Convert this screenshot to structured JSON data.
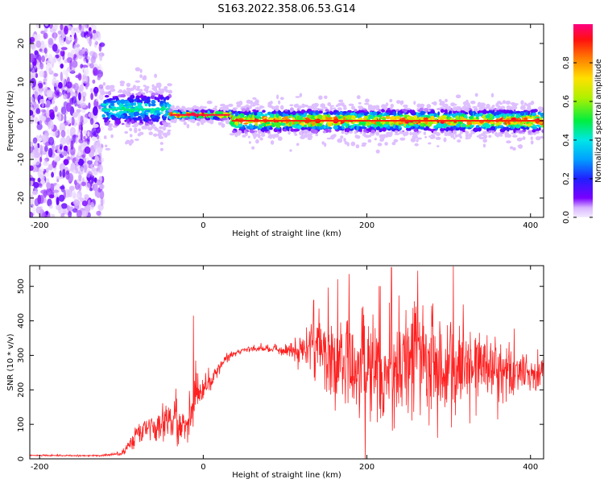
{
  "figure": {
    "title": "S163.2022.358.06.53.G14"
  },
  "chart_data": [
    {
      "type": "heatmap",
      "title": "S163.2022.358.06.53.G14",
      "xlabel": "Height of straight line (km)",
      "ylabel": "Frequency (Hz)",
      "xlim": [
        -212,
        416
      ],
      "ylim": [
        -25,
        25
      ],
      "xticks": [
        "-200",
        "0",
        "200",
        "400"
      ],
      "yticks": [
        "-20",
        "-10",
        "0",
        "10",
        "20"
      ],
      "colorbar": {
        "label": "Normalized spectral amplitude",
        "range": [
          0,
          1
        ],
        "ticks": [
          "0.0",
          "0.2",
          "0.4",
          "0.6",
          "0.8"
        ],
        "colors": [
          "#f4ecff",
          "#d8b4ff",
          "#7a00ff",
          "#2020ff",
          "#00a0ff",
          "#00e6e6",
          "#00ee40",
          "#b0f000",
          "#ffe000",
          "#ff8000",
          "#ff1010",
          "#ff0080"
        ]
      },
      "features": [
        {
          "x_range": [
            -212,
            -123
          ],
          "freq_range": [
            -25,
            25
          ],
          "amplitude": 0.15,
          "description_type": "scattered noise"
        },
        {
          "x_range": [
            -123,
            -40
          ],
          "center_freq": 3,
          "spread_hz": 8,
          "amplitude": 0.45
        },
        {
          "x_range": [
            -40,
            35
          ],
          "center_freq": 1.5,
          "spread_hz": 2,
          "amplitude": 0.95
        },
        {
          "x_range": [
            35,
            416
          ],
          "center_freq": 0,
          "spread_hz": 5,
          "amplitude": 0.9
        }
      ],
      "grid": false
    },
    {
      "type": "line",
      "xlabel": "Height of straight line (km)",
      "ylabel": "SNR (10 * v/v)",
      "xlim": [
        -212,
        416
      ],
      "ylim": [
        0,
        560
      ],
      "xticks": [
        "-200",
        "0",
        "200",
        "400"
      ],
      "yticks": [
        "0",
        "100",
        "200",
        "300",
        "400",
        "500"
      ],
      "color": "#ff2020",
      "series": [
        {
          "x": [
            -212,
            -180,
            -150,
            -120,
            -100,
            -90,
            -80,
            -70,
            -60,
            -50,
            -40,
            -30,
            -20,
            -15,
            -10,
            0,
            10,
            20,
            30,
            40,
            50,
            60,
            80,
            100,
            120,
            140,
            160,
            180,
            200,
            220,
            240,
            260,
            280,
            300,
            320,
            340,
            360,
            380,
            400,
            416
          ],
          "y": [
            10,
            10,
            9,
            10,
            15,
            40,
            70,
            85,
            100,
            110,
            120,
            110,
            100,
            120,
            180,
            210,
            230,
            265,
            295,
            310,
            315,
            318,
            320,
            315,
            320,
            330,
            300,
            290,
            290,
            270,
            290,
            300,
            280,
            280,
            280,
            270,
            265,
            260,
            245,
            240
          ],
          "spread": [
            3,
            3,
            3,
            4,
            8,
            30,
            40,
            60,
            70,
            80,
            100,
            90,
            90,
            100,
            120,
            60,
            40,
            30,
            20,
            15,
            10,
            12,
            15,
            25,
            60,
            160,
            220,
            250,
            250,
            260,
            260,
            260,
            250,
            230,
            200,
            170,
            140,
            110,
            90,
            80
          ]
        }
      ],
      "peaks": [
        {
          "x": -12,
          "y": 415
        },
        {
          "x": 230,
          "y": 555
        },
        {
          "x": 262,
          "y": 545
        },
        {
          "x": 135,
          "y": 460
        }
      ],
      "grid": false
    }
  ]
}
